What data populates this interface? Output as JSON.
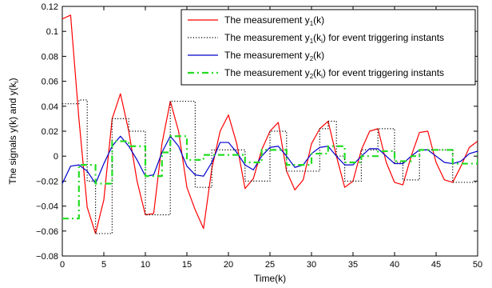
{
  "chart_data": {
    "type": "line",
    "xlabel": "Time(k)",
    "ylabel": "The signals y(k) and y(k",
    "ylabel_sub": "i",
    "ylabel_tail": ")",
    "xlim": [
      0,
      50
    ],
    "ylim": [
      -0.08,
      0.12
    ],
    "x_ticks": [
      0,
      5,
      10,
      15,
      20,
      25,
      30,
      35,
      40,
      45,
      50
    ],
    "y_ticks": [
      -0.08,
      -0.06,
      -0.04,
      -0.02,
      0,
      0.02,
      0.04,
      0.06,
      0.08,
      0.1,
      0.12
    ],
    "x_tick_labels": [
      "0",
      "5",
      "10",
      "15",
      "20",
      "25",
      "30",
      "35",
      "40",
      "45",
      "50"
    ],
    "y_tick_labels": [
      "−0.08",
      "−0.06",
      "−0.04",
      "−0.02",
      "0",
      "0.02",
      "0.04",
      "0.06",
      "0.08",
      "0.1",
      "0.12"
    ],
    "grid": false,
    "legend_position": "top-right",
    "series": [
      {
        "name": "The measurement y1(k)",
        "legend": {
          "pre": "The measurement y",
          "sub": "1",
          "post": "(k)"
        },
        "color": "#ff0000",
        "dash": "none",
        "width": 1.2,
        "step": false,
        "x": [
          0,
          1,
          2,
          3,
          4,
          5,
          6,
          7,
          8,
          9,
          10,
          11,
          12,
          13,
          14,
          15,
          16,
          17,
          18,
          19,
          20,
          21,
          22,
          23,
          24,
          25,
          26,
          27,
          28,
          29,
          30,
          31,
          32,
          33,
          34,
          35,
          36,
          37,
          38,
          39,
          40,
          41,
          42,
          43,
          44,
          45,
          46,
          47,
          48,
          49,
          50
        ],
        "y": [
          0.11,
          0.113,
          0.03,
          -0.041,
          -0.062,
          -0.035,
          0.03,
          0.05,
          0.02,
          -0.02,
          -0.047,
          -0.046,
          0.01,
          0.044,
          0.02,
          -0.025,
          -0.043,
          -0.058,
          -0.01,
          0.02,
          0.033,
          0.01,
          -0.026,
          -0.018,
          0.005,
          0.02,
          0.027,
          -0.012,
          -0.027,
          -0.019,
          0.01,
          0.022,
          0.028,
          0.0,
          -0.025,
          -0.02,
          0.005,
          0.02,
          0.022,
          -0.005,
          -0.021,
          -0.023,
          0.0,
          0.019,
          0.02,
          -0.005,
          -0.019,
          -0.021,
          -0.008,
          0.007,
          0.012
        ]
      },
      {
        "name": "The measurement y1(ki) for event triggering instants",
        "legend": {
          "pre": "The measurement y",
          "sub": "1",
          "post": "(k",
          "sub2": "i",
          "post2": ") for event triggering instants"
        },
        "color": "#000000",
        "dash": "1.2,2.2",
        "width": 1.2,
        "step": true,
        "x": [
          0,
          1,
          2,
          3,
          4,
          5,
          6,
          7,
          8,
          9,
          10,
          11,
          12,
          13,
          14,
          15,
          16,
          17,
          18,
          19,
          20,
          21,
          22,
          23,
          24,
          25,
          26,
          27,
          28,
          29,
          30,
          31,
          32,
          33,
          34,
          35,
          36,
          37,
          38,
          39,
          40,
          41,
          42,
          43,
          44,
          45,
          46,
          47,
          48,
          49,
          50
        ],
        "y": [
          0.042,
          0.042,
          0.045,
          -0.02,
          -0.062,
          -0.062,
          0.03,
          0.03,
          0.02,
          0.02,
          -0.047,
          -0.047,
          -0.047,
          0.044,
          0.044,
          0.044,
          -0.025,
          -0.025,
          0.005,
          0.005,
          0.005,
          0.005,
          -0.02,
          -0.02,
          -0.02,
          0.02,
          0.02,
          -0.012,
          -0.012,
          -0.012,
          -0.012,
          0.022,
          0.028,
          0.0,
          -0.02,
          -0.02,
          0.005,
          0.005,
          0.022,
          0.022,
          -0.005,
          -0.019,
          -0.019,
          0.005,
          0.005,
          0.005,
          0.005,
          -0.021,
          -0.021,
          -0.021,
          0.012
        ]
      },
      {
        "name": "The measurement y2(k)",
        "legend": {
          "pre": "The measurement y",
          "sub": "2",
          "post": "(k)"
        },
        "color": "#0000cc",
        "dash": "none",
        "width": 1.2,
        "step": false,
        "x": [
          0,
          1,
          2,
          3,
          4,
          5,
          6,
          7,
          8,
          9,
          10,
          11,
          12,
          13,
          14,
          15,
          16,
          17,
          18,
          19,
          20,
          21,
          22,
          23,
          24,
          25,
          26,
          27,
          28,
          29,
          30,
          31,
          32,
          33,
          34,
          35,
          36,
          37,
          38,
          39,
          40,
          41,
          42,
          43,
          44,
          45,
          46,
          47,
          48,
          49,
          50
        ],
        "y": [
          -0.022,
          -0.008,
          -0.007,
          -0.012,
          -0.022,
          -0.006,
          0.008,
          0.016,
          0.008,
          -0.003,
          -0.016,
          -0.015,
          0.003,
          0.016,
          0.008,
          -0.008,
          -0.015,
          -0.016,
          -0.005,
          0.011,
          0.011,
          0.003,
          -0.007,
          -0.011,
          0.0,
          0.007,
          0.008,
          0.0,
          -0.009,
          -0.007,
          0.002,
          0.007,
          0.008,
          0.0,
          -0.007,
          -0.007,
          0.0,
          0.006,
          0.006,
          0.0,
          -0.006,
          -0.006,
          0.0,
          0.005,
          0.005,
          0.0,
          -0.005,
          -0.006,
          -0.004,
          0.002,
          0.004
        ]
      },
      {
        "name": "The measurement y2(ki) for event triggering instants",
        "legend": {
          "pre": "The measurement y",
          "sub": "2",
          "post": "(k",
          "sub2": "i",
          "post2": ") for event triggering instants"
        },
        "color": "#22dd22",
        "dash": "8,4,2,4",
        "width": 2.2,
        "step": true,
        "x": [
          0,
          1,
          2,
          3,
          4,
          5,
          6,
          7,
          8,
          9,
          10,
          11,
          12,
          13,
          14,
          15,
          16,
          17,
          18,
          19,
          20,
          21,
          22,
          23,
          24,
          25,
          26,
          27,
          28,
          29,
          30,
          31,
          32,
          33,
          34,
          35,
          36,
          37,
          38,
          39,
          40,
          41,
          42,
          43,
          44,
          45,
          46,
          47,
          48,
          49,
          50
        ],
        "y": [
          -0.05,
          -0.05,
          -0.007,
          -0.007,
          -0.022,
          -0.022,
          0.012,
          0.012,
          0.008,
          0.008,
          -0.016,
          -0.016,
          0.003,
          0.016,
          0.016,
          -0.003,
          -0.003,
          0.001,
          0.001,
          0.001,
          0.001,
          0.001,
          -0.005,
          -0.005,
          0.005,
          0.005,
          0.005,
          -0.007,
          -0.007,
          -0.007,
          0.002,
          0.002,
          0.008,
          0.008,
          -0.005,
          -0.005,
          0.0,
          0.0,
          0.004,
          0.004,
          -0.004,
          -0.004,
          0.0,
          0.005,
          0.005,
          0.005,
          0.005,
          -0.006,
          -0.006,
          -0.006,
          0.004
        ]
      }
    ]
  }
}
